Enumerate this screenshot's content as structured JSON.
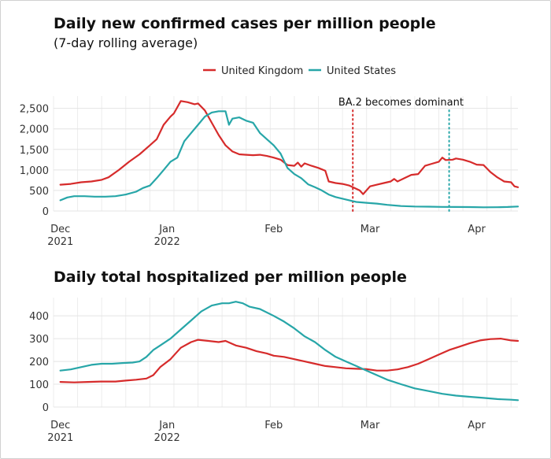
{
  "chart_data": [
    {
      "type": "line",
      "title": "Daily new confirmed cases per million people",
      "subtitle": "(7-day rolling average)",
      "x_range": [
        "2021-11-29",
        "2022-04-13"
      ],
      "ylim": [
        0,
        2800
      ],
      "yticks": [
        0,
        500,
        1000,
        1500,
        2000,
        2500
      ],
      "ytick_labels": [
        "0",
        "500",
        "1,000",
        "1,500",
        "2,000",
        "2,500"
      ],
      "xticks": [
        {
          "date": "2021-12-01",
          "line1": "Dec",
          "line2": "2021"
        },
        {
          "date": "2022-01-01",
          "line1": "Jan",
          "line2": "2022"
        },
        {
          "date": "2022-02-01",
          "line1": "Feb",
          "line2": ""
        },
        {
          "date": "2022-03-01",
          "line1": "Mar",
          "line2": ""
        },
        {
          "date": "2022-04-01",
          "line1": "Apr",
          "line2": ""
        }
      ],
      "grid": true,
      "legend_position": "top-center",
      "annotation": {
        "text": "BA.2 becomes dominant",
        "markers": [
          {
            "date": "2022-02-24",
            "series": "United Kingdom"
          },
          {
            "date": "2022-03-24",
            "series": "United States"
          }
        ]
      },
      "series": [
        {
          "name": "United Kingdom",
          "color": "#d62b2b",
          "points": [
            [
              "2021-12-01",
              640
            ],
            [
              "2021-12-04",
              660
            ],
            [
              "2021-12-07",
              700
            ],
            [
              "2021-12-10",
              720
            ],
            [
              "2021-12-13",
              760
            ],
            [
              "2021-12-15",
              820
            ],
            [
              "2021-12-18",
              1000
            ],
            [
              "2021-12-21",
              1200
            ],
            [
              "2021-12-24",
              1380
            ],
            [
              "2021-12-27",
              1600
            ],
            [
              "2021-12-29",
              1750
            ],
            [
              "2021-12-31",
              2100
            ],
            [
              "2022-01-02",
              2300
            ],
            [
              "2022-01-03",
              2380
            ],
            [
              "2022-01-05",
              2680
            ],
            [
              "2022-01-07",
              2650
            ],
            [
              "2022-01-09",
              2600
            ],
            [
              "2022-01-10",
              2620
            ],
            [
              "2022-01-12",
              2450
            ],
            [
              "2022-01-14",
              2150
            ],
            [
              "2022-01-16",
              1850
            ],
            [
              "2022-01-18",
              1600
            ],
            [
              "2022-01-20",
              1450
            ],
            [
              "2022-01-22",
              1380
            ],
            [
              "2022-01-24",
              1370
            ],
            [
              "2022-01-26",
              1360
            ],
            [
              "2022-01-28",
              1370
            ],
            [
              "2022-01-30",
              1340
            ],
            [
              "2022-02-01",
              1300
            ],
            [
              "2022-02-03",
              1250
            ],
            [
              "2022-02-05",
              1120
            ],
            [
              "2022-02-07",
              1100
            ],
            [
              "2022-02-08",
              1180
            ],
            [
              "2022-02-09",
              1080
            ],
            [
              "2022-02-10",
              1160
            ],
            [
              "2022-02-12",
              1100
            ],
            [
              "2022-02-14",
              1050
            ],
            [
              "2022-02-16",
              980
            ],
            [
              "2022-02-17",
              720
            ],
            [
              "2022-02-19",
              680
            ],
            [
              "2022-02-21",
              660
            ],
            [
              "2022-02-23",
              620
            ],
            [
              "2022-02-24",
              580
            ],
            [
              "2022-02-26",
              500
            ],
            [
              "2022-02-27",
              410
            ],
            [
              "2022-03-01",
              600
            ],
            [
              "2022-03-03",
              640
            ],
            [
              "2022-03-05",
              680
            ],
            [
              "2022-03-07",
              720
            ],
            [
              "2022-03-08",
              780
            ],
            [
              "2022-03-09",
              720
            ],
            [
              "2022-03-11",
              800
            ],
            [
              "2022-03-13",
              880
            ],
            [
              "2022-03-15",
              900
            ],
            [
              "2022-03-17",
              1100
            ],
            [
              "2022-03-19",
              1150
            ],
            [
              "2022-03-21",
              1200
            ],
            [
              "2022-03-22",
              1300
            ],
            [
              "2022-03-23",
              1240
            ],
            [
              "2022-03-25",
              1250
            ],
            [
              "2022-03-26",
              1280
            ],
            [
              "2022-03-28",
              1250
            ],
            [
              "2022-03-30",
              1200
            ],
            [
              "2022-04-01",
              1130
            ],
            [
              "2022-04-03",
              1120
            ],
            [
              "2022-04-05",
              950
            ],
            [
              "2022-04-07",
              820
            ],
            [
              "2022-04-09",
              720
            ],
            [
              "2022-04-11",
              700
            ],
            [
              "2022-04-12",
              600
            ],
            [
              "2022-04-13",
              580
            ]
          ]
        },
        {
          "name": "United States",
          "color": "#27a6a8",
          "points": [
            [
              "2021-12-01",
              260
            ],
            [
              "2021-12-03",
              330
            ],
            [
              "2021-12-05",
              360
            ],
            [
              "2021-12-08",
              360
            ],
            [
              "2021-12-11",
              350
            ],
            [
              "2021-12-14",
              350
            ],
            [
              "2021-12-17",
              360
            ],
            [
              "2021-12-20",
              400
            ],
            [
              "2021-12-23",
              470
            ],
            [
              "2021-12-25",
              560
            ],
            [
              "2021-12-27",
              620
            ],
            [
              "2021-12-29",
              800
            ],
            [
              "2021-12-31",
              1000
            ],
            [
              "2022-01-02",
              1200
            ],
            [
              "2022-01-04",
              1300
            ],
            [
              "2022-01-06",
              1700
            ],
            [
              "2022-01-08",
              1900
            ],
            [
              "2022-01-10",
              2100
            ],
            [
              "2022-01-12",
              2300
            ],
            [
              "2022-01-14",
              2400
            ],
            [
              "2022-01-16",
              2430
            ],
            [
              "2022-01-18",
              2430
            ],
            [
              "2022-01-19",
              2100
            ],
            [
              "2022-01-20",
              2250
            ],
            [
              "2022-01-22",
              2280
            ],
            [
              "2022-01-24",
              2200
            ],
            [
              "2022-01-26",
              2150
            ],
            [
              "2022-01-28",
              1900
            ],
            [
              "2022-01-30",
              1750
            ],
            [
              "2022-02-01",
              1600
            ],
            [
              "2022-02-03",
              1400
            ],
            [
              "2022-02-05",
              1050
            ],
            [
              "2022-02-07",
              900
            ],
            [
              "2022-02-09",
              800
            ],
            [
              "2022-02-11",
              650
            ],
            [
              "2022-02-13",
              580
            ],
            [
              "2022-02-15",
              500
            ],
            [
              "2022-02-17",
              400
            ],
            [
              "2022-02-19",
              340
            ],
            [
              "2022-02-22",
              280
            ],
            [
              "2022-02-25",
              220
            ],
            [
              "2022-02-28",
              200
            ],
            [
              "2022-03-03",
              180
            ],
            [
              "2022-03-06",
              150
            ],
            [
              "2022-03-10",
              120
            ],
            [
              "2022-03-14",
              110
            ],
            [
              "2022-03-18",
              105
            ],
            [
              "2022-03-22",
              100
            ],
            [
              "2022-03-26",
              98
            ],
            [
              "2022-03-30",
              95
            ],
            [
              "2022-04-03",
              90
            ],
            [
              "2022-04-07",
              92
            ],
            [
              "2022-04-10",
              98
            ],
            [
              "2022-04-13",
              110
            ]
          ]
        }
      ]
    },
    {
      "type": "line",
      "title": "Daily total hospitalized per million people",
      "subtitle": "",
      "x_range": [
        "2021-11-29",
        "2022-04-13"
      ],
      "ylim": [
        0,
        480
      ],
      "yticks": [
        0,
        100,
        200,
        300,
        400
      ],
      "ytick_labels": [
        "0",
        "100",
        "200",
        "300",
        "400"
      ],
      "xticks": [
        {
          "date": "2021-12-01",
          "line1": "Dec",
          "line2": "2021"
        },
        {
          "date": "2022-01-01",
          "line1": "Jan",
          "line2": "2022"
        },
        {
          "date": "2022-02-01",
          "line1": "Feb",
          "line2": ""
        },
        {
          "date": "2022-03-01",
          "line1": "Mar",
          "line2": ""
        },
        {
          "date": "2022-04-01",
          "line1": "Apr",
          "line2": ""
        }
      ],
      "grid": true,
      "series": [
        {
          "name": "United Kingdom",
          "color": "#d62b2b",
          "points": [
            [
              "2021-12-01",
              110
            ],
            [
              "2021-12-05",
              108
            ],
            [
              "2021-12-09",
              110
            ],
            [
              "2021-12-13",
              112
            ],
            [
              "2021-12-17",
              112
            ],
            [
              "2021-12-20",
              116
            ],
            [
              "2021-12-23",
              120
            ],
            [
              "2021-12-26",
              125
            ],
            [
              "2021-12-28",
              140
            ],
            [
              "2021-12-30",
              175
            ],
            [
              "2022-01-02",
              210
            ],
            [
              "2022-01-05",
              260
            ],
            [
              "2022-01-08",
              285
            ],
            [
              "2022-01-10",
              295
            ],
            [
              "2022-01-13",
              290
            ],
            [
              "2022-01-16",
              285
            ],
            [
              "2022-01-18",
              290
            ],
            [
              "2022-01-21",
              270
            ],
            [
              "2022-01-24",
              260
            ],
            [
              "2022-01-27",
              245
            ],
            [
              "2022-01-30",
              235
            ],
            [
              "2022-02-01",
              225
            ],
            [
              "2022-02-04",
              220
            ],
            [
              "2022-02-07",
              210
            ],
            [
              "2022-02-10",
              200
            ],
            [
              "2022-02-13",
              190
            ],
            [
              "2022-02-16",
              180
            ],
            [
              "2022-02-19",
              175
            ],
            [
              "2022-02-22",
              170
            ],
            [
              "2022-02-25",
              168
            ],
            [
              "2022-02-28",
              166
            ],
            [
              "2022-03-03",
              160
            ],
            [
              "2022-03-06",
              160
            ],
            [
              "2022-03-09",
              165
            ],
            [
              "2022-03-12",
              175
            ],
            [
              "2022-03-15",
              190
            ],
            [
              "2022-03-18",
              210
            ],
            [
              "2022-03-21",
              230
            ],
            [
              "2022-03-24",
              250
            ],
            [
              "2022-03-27",
              265
            ],
            [
              "2022-03-30",
              280
            ],
            [
              "2022-04-02",
              292
            ],
            [
              "2022-04-05",
              298
            ],
            [
              "2022-04-08",
              300
            ],
            [
              "2022-04-11",
              292
            ],
            [
              "2022-04-13",
              290
            ]
          ]
        },
        {
          "name": "United States",
          "color": "#27a6a8",
          "points": [
            [
              "2021-12-01",
              160
            ],
            [
              "2021-12-04",
              165
            ],
            [
              "2021-12-07",
              175
            ],
            [
              "2021-12-10",
              185
            ],
            [
              "2021-12-13",
              190
            ],
            [
              "2021-12-16",
              190
            ],
            [
              "2021-12-19",
              193
            ],
            [
              "2021-12-22",
              195
            ],
            [
              "2021-12-24",
              200
            ],
            [
              "2021-12-26",
              220
            ],
            [
              "2021-12-28",
              250
            ],
            [
              "2021-12-30",
              270
            ],
            [
              "2022-01-02",
              300
            ],
            [
              "2022-01-05",
              340
            ],
            [
              "2022-01-08",
              380
            ],
            [
              "2022-01-11",
              420
            ],
            [
              "2022-01-14",
              445
            ],
            [
              "2022-01-17",
              455
            ],
            [
              "2022-01-19",
              455
            ],
            [
              "2022-01-21",
              462
            ],
            [
              "2022-01-23",
              455
            ],
            [
              "2022-01-25",
              440
            ],
            [
              "2022-01-28",
              430
            ],
            [
              "2022-02-01",
              400
            ],
            [
              "2022-02-04",
              375
            ],
            [
              "2022-02-07",
              345
            ],
            [
              "2022-02-10",
              310
            ],
            [
              "2022-02-13",
              285
            ],
            [
              "2022-02-16",
              250
            ],
            [
              "2022-02-19",
              220
            ],
            [
              "2022-02-22",
              200
            ],
            [
              "2022-02-25",
              180
            ],
            [
              "2022-02-28",
              160
            ],
            [
              "2022-03-03",
              140
            ],
            [
              "2022-03-06",
              120
            ],
            [
              "2022-03-10",
              100
            ],
            [
              "2022-03-14",
              82
            ],
            [
              "2022-03-18",
              70
            ],
            [
              "2022-03-22",
              58
            ],
            [
              "2022-03-26",
              50
            ],
            [
              "2022-03-30",
              45
            ],
            [
              "2022-04-03",
              40
            ],
            [
              "2022-04-07",
              35
            ],
            [
              "2022-04-11",
              32
            ],
            [
              "2022-04-13",
              30
            ]
          ]
        }
      ]
    }
  ]
}
